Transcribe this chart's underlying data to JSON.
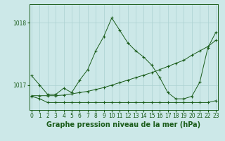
{
  "title": "Graphe pression niveau de la mer (hPa)",
  "background_color": "#cce8e8",
  "grid_color": "#aad0d0",
  "line_color": "#1a5c1a",
  "x_ticks": [
    0,
    1,
    2,
    3,
    4,
    5,
    6,
    7,
    8,
    9,
    10,
    11,
    12,
    13,
    14,
    15,
    16,
    17,
    18,
    19,
    20,
    21,
    22,
    23
  ],
  "y_ticks": [
    1017,
    1018
  ],
  "ylim": [
    1016.6,
    1018.3
  ],
  "xlim": [
    -0.3,
    23.3
  ],
  "series_flat_x": [
    0,
    1,
    2,
    3,
    4,
    5,
    6,
    7,
    8,
    9,
    10,
    11,
    12,
    13,
    14,
    15,
    16,
    17,
    18,
    19,
    20,
    21,
    22,
    23
  ],
  "series_flat_y": [
    1016.82,
    1016.78,
    1016.72,
    1016.72,
    1016.72,
    1016.72,
    1016.72,
    1016.72,
    1016.72,
    1016.72,
    1016.72,
    1016.72,
    1016.72,
    1016.72,
    1016.72,
    1016.72,
    1016.72,
    1016.72,
    1016.72,
    1016.72,
    1016.72,
    1016.72,
    1016.72,
    1016.75
  ],
  "series_diag_x": [
    0,
    1,
    2,
    3,
    4,
    5,
    6,
    7,
    8,
    9,
    10,
    11,
    12,
    13,
    14,
    15,
    16,
    17,
    18,
    19,
    20,
    21,
    22,
    23
  ],
  "series_diag_y": [
    1016.83,
    1016.83,
    1016.83,
    1016.83,
    1016.84,
    1016.86,
    1016.88,
    1016.9,
    1016.93,
    1016.96,
    1017.0,
    1017.04,
    1017.08,
    1017.12,
    1017.16,
    1017.2,
    1017.25,
    1017.3,
    1017.35,
    1017.4,
    1017.48,
    1017.55,
    1017.62,
    1017.72
  ],
  "series_peak_x": [
    0,
    1,
    2,
    3,
    4,
    5,
    6,
    7,
    8,
    9,
    10,
    11,
    12,
    13,
    14,
    15,
    16,
    17,
    18,
    19,
    20,
    21,
    22,
    23
  ],
  "series_peak_y": [
    1017.15,
    1017.0,
    1016.85,
    1016.85,
    1016.95,
    1016.88,
    1017.08,
    1017.25,
    1017.55,
    1017.78,
    1018.08,
    1017.88,
    1017.68,
    1017.55,
    1017.45,
    1017.32,
    1017.12,
    1016.88,
    1016.78,
    1016.78,
    1016.82,
    1017.05,
    1017.6,
    1017.85
  ],
  "title_fontsize": 7,
  "tick_fontsize": 5.5
}
